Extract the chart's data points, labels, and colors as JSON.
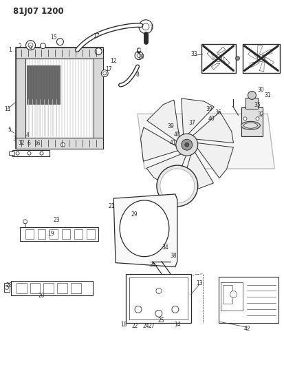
{
  "title": "81J07 1200",
  "bg_color": "#ffffff",
  "line_color": "#2a2a2a",
  "title_fontsize": 8.5,
  "label_fontsize": 5.5,
  "fig_width": 4.13,
  "fig_height": 5.33,
  "dpi": 100
}
